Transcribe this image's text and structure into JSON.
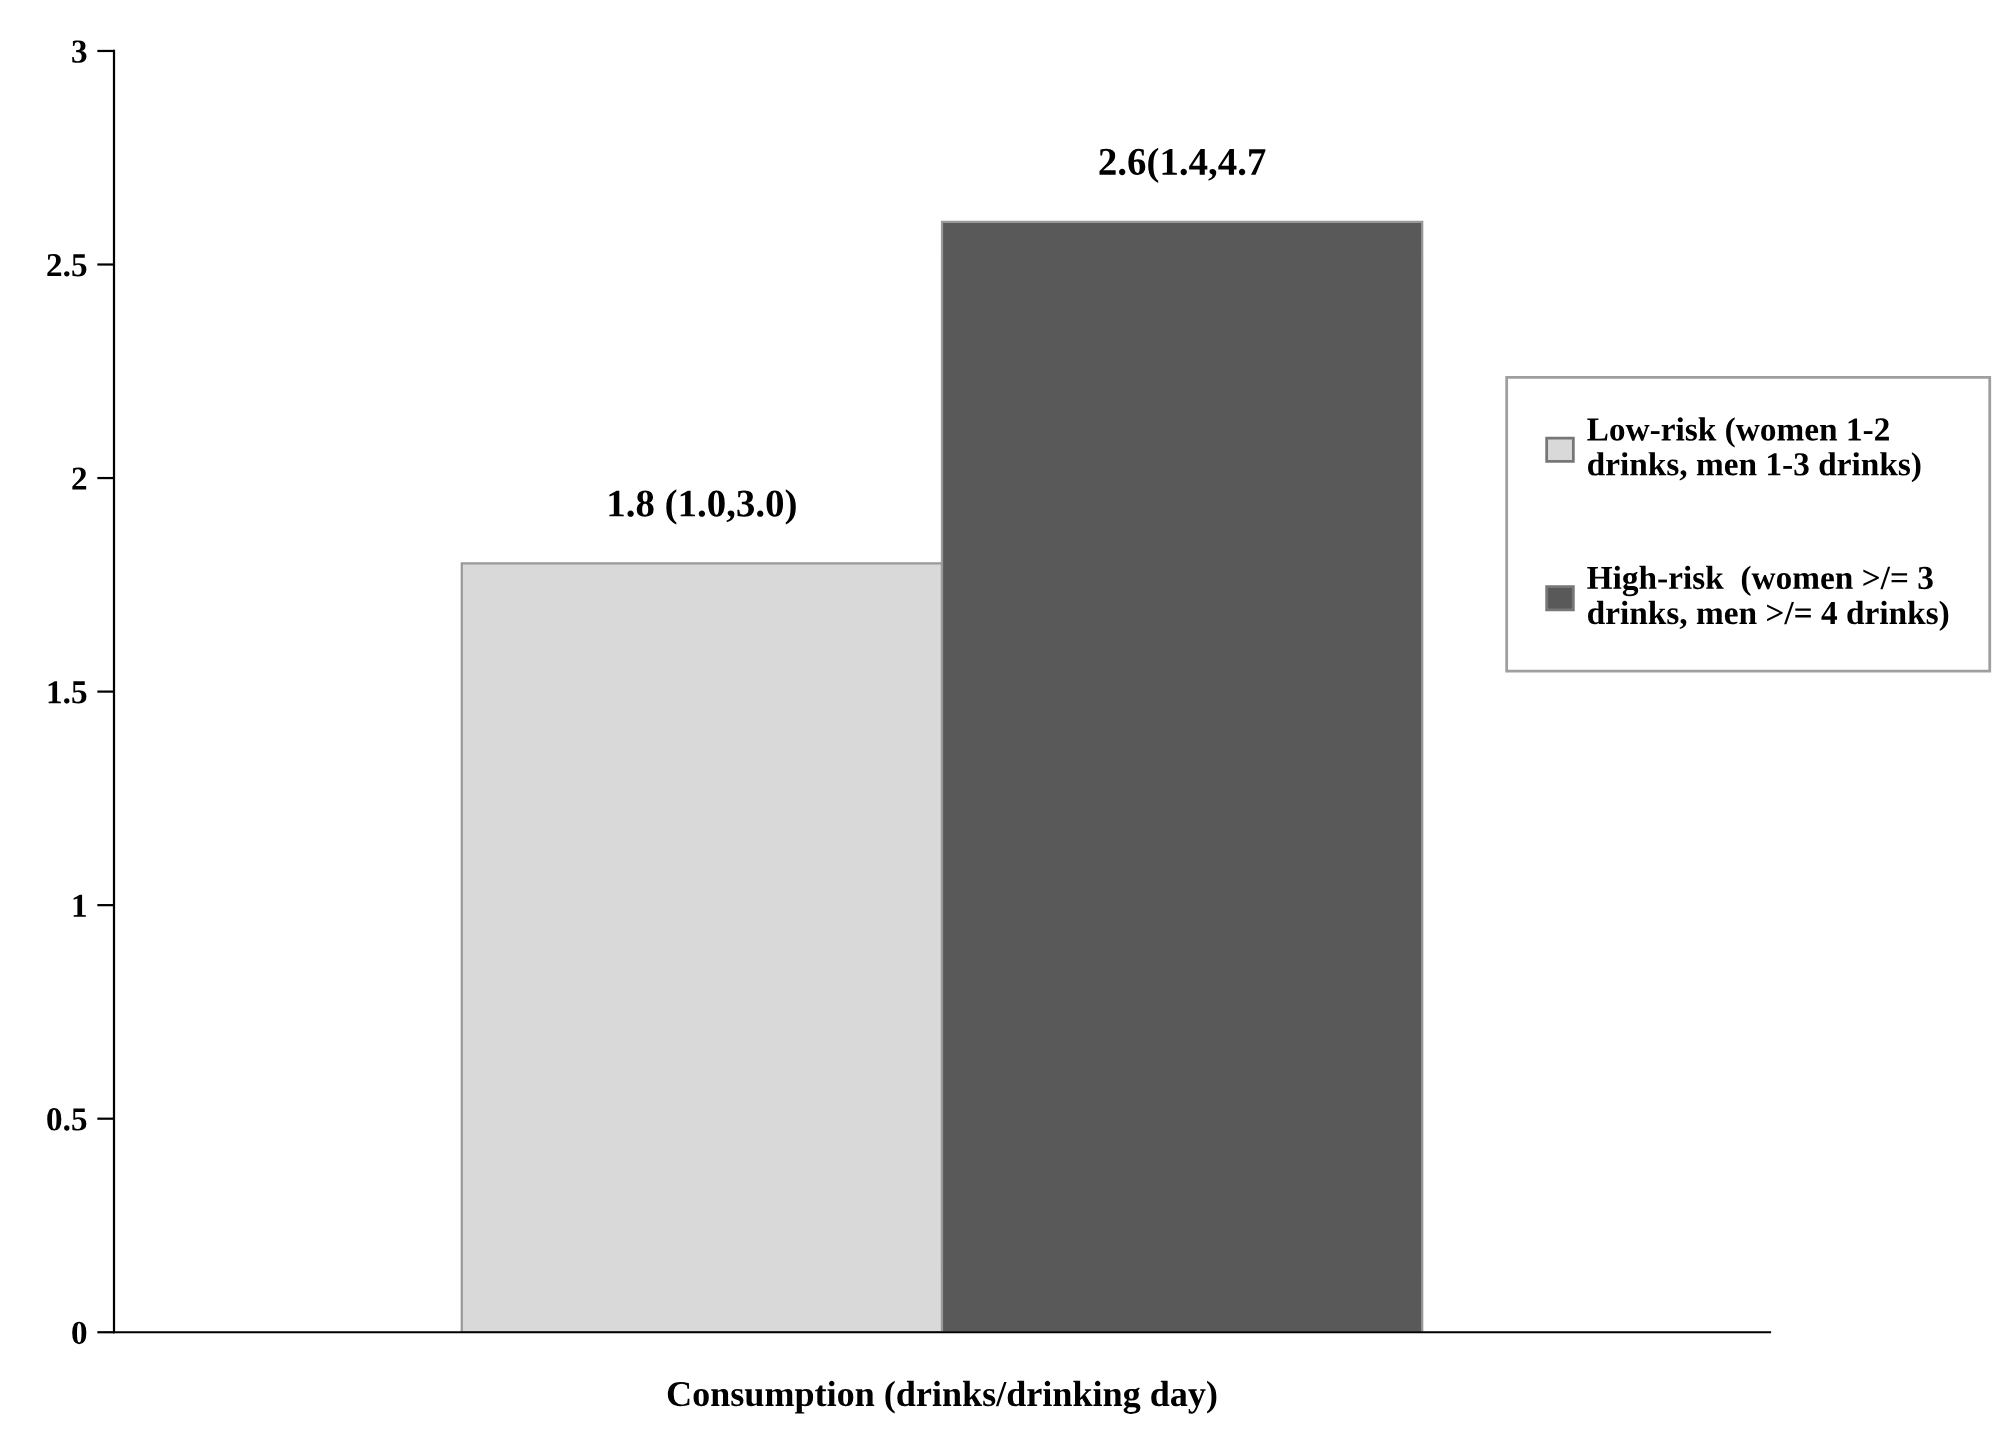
{
  "chart_data": {
    "type": "bar",
    "categories": [
      null
    ],
    "xlabel": "Consumption (drinks/drinking day)",
    "series": [
      {
        "name": "Low-risk (women 1-2\ndrinks, men 1-3 drinks)",
        "color": "#d9d9d9",
        "values": [
          1.8
        ],
        "value_labels": [
          "1.8 (1.0,3.0)"
        ]
      },
      {
        "name": "High-risk  (women >/= 3\ndrinks, men >/= 4 drinks)",
        "color": "#595959",
        "values": [
          2.6
        ],
        "value_labels": [
          "2.6(1.4,4.7"
        ]
      }
    ],
    "ylim": [
      0,
      3
    ],
    "yticks": [
      0,
      0.5,
      1,
      1.5,
      2,
      2.5,
      3
    ],
    "grid": false,
    "legend": "right"
  }
}
